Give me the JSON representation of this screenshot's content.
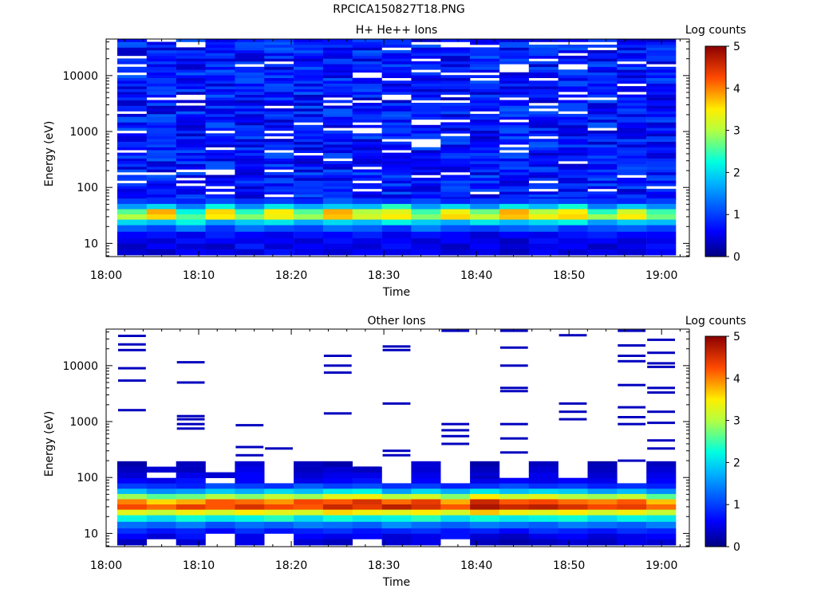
{
  "figure_title": "RPCICA150827T18.PNG",
  "chart_data": [
    {
      "type": "heatmap",
      "title": "H+ He++ Ions",
      "xlabel": "Time",
      "ylabel": "Energy (eV)",
      "y_scale": "log",
      "y_range": [
        5.8,
        45000
      ],
      "x_range": [
        "18:00",
        "19:03"
      ],
      "x_ticks": [
        "18:00",
        "18:10",
        "18:20",
        "18:30",
        "18:40",
        "18:50",
        "19:00"
      ],
      "y_ticks": [
        {
          "value": 10,
          "label": "10"
        },
        {
          "value": 100,
          "label": "100"
        },
        {
          "value": 1000,
          "label": "1000"
        },
        {
          "value": 10000,
          "label": "10000"
        }
      ],
      "colorbar": {
        "label": "Log counts",
        "range": [
          0,
          5
        ],
        "ticks": [
          "0",
          "1",
          "2",
          "3",
          "4",
          "5"
        ]
      },
      "time_columns": [
        "18:01",
        "18:04",
        "18:07",
        "18:11",
        "18:14",
        "18:17",
        "18:20",
        "18:24",
        "18:27",
        "18:30",
        "18:33",
        "18:37",
        "18:40",
        "18:43",
        "18:46",
        "18:50",
        "18:53",
        "18:56",
        "18:59"
      ],
      "energy_bins_eV": [
        7,
        9,
        11,
        14,
        19,
        24,
        30,
        37,
        46,
        57
      ],
      "values_log_counts": [
        [
          0.4,
          0.3,
          0.6,
          0.5,
          0.4,
          0.7,
          0.5,
          0.4,
          0.6,
          0.5,
          0.6,
          0.4,
          0.5,
          0.3,
          0.6,
          0.4,
          0.5,
          0.4,
          0.6
        ],
        [
          0.3,
          0.6,
          0.4,
          0.3,
          0.8,
          0.4,
          0.6,
          0.5,
          0.4,
          0.7,
          0.5,
          0.3,
          0.6,
          0.4,
          0.5,
          0.6,
          0.3,
          0.5,
          0.7
        ],
        [
          0.5,
          0.4,
          0.7,
          0.6,
          0.5,
          0.6,
          0.4,
          0.7,
          0.5,
          0.6,
          0.4,
          0.6,
          0.5,
          0.3,
          0.7,
          0.5,
          0.6,
          0.4,
          0.5
        ],
        [
          0.6,
          0.7,
          0.5,
          0.8,
          0.6,
          0.5,
          0.7,
          0.6,
          0.8,
          0.5,
          0.7,
          0.6,
          0.4,
          0.6,
          0.5,
          0.7,
          0.8,
          0.6,
          0.6
        ],
        [
          1.2,
          1.0,
          1.4,
          0.9,
          1.3,
          1.1,
          1.0,
          1.3,
          1.2,
          0.9,
          1.4,
          1.1,
          1.0,
          1.2,
          1.3,
          0.9,
          1.1,
          1.2,
          1.0
        ],
        [
          2.0,
          1.8,
          2.2,
          1.6,
          1.9,
          2.1,
          1.7,
          2.0,
          1.8,
          2.2,
          1.9,
          1.7,
          2.1,
          1.8,
          2.0,
          2.2,
          1.6,
          1.9,
          1.8
        ],
        [
          3.0,
          3.6,
          2.6,
          3.5,
          2.8,
          3.4,
          2.9,
          3.7,
          3.2,
          3.5,
          2.8,
          3.6,
          3.1,
          3.7,
          3.4,
          3.6,
          2.9,
          3.5,
          2.7
        ],
        [
          2.6,
          3.8,
          2.2,
          3.6,
          2.4,
          3.5,
          2.6,
          3.8,
          3.0,
          3.3,
          2.5,
          3.4,
          2.7,
          3.8,
          3.0,
          3.5,
          2.4,
          3.2,
          2.5
        ],
        [
          1.6,
          2.0,
          1.4,
          2.2,
          1.5,
          2.1,
          1.7,
          1.9,
          1.8,
          2.4,
          1.6,
          2.0,
          1.5,
          2.1,
          1.8,
          2.3,
          1.4,
          1.9,
          1.5
        ],
        [
          1.0,
          0.9,
          0.8,
          1.1,
          0.9,
          1.0,
          0.8,
          1.2,
          1.0,
          0.9,
          1.1,
          0.8,
          1.0,
          0.9,
          1.1,
          1.0,
          0.9,
          0.8,
          1.0
        ]
      ],
      "background_band_eV": [
        60,
        45000
      ],
      "background_log_counts": [
        0.3,
        1.2
      ]
    },
    {
      "type": "heatmap",
      "title": "Other Ions",
      "xlabel": "Time",
      "ylabel": "Energy (eV)",
      "y_scale": "log",
      "y_range": [
        5.8,
        45000
      ],
      "x_range": [
        "18:00",
        "19:03"
      ],
      "x_ticks": [
        "18:00",
        "18:10",
        "18:20",
        "18:30",
        "18:40",
        "18:50",
        "19:00"
      ],
      "y_ticks": [
        {
          "value": 10,
          "label": "10"
        },
        {
          "value": 100,
          "label": "100"
        },
        {
          "value": 1000,
          "label": "1000"
        },
        {
          "value": 10000,
          "label": "10000"
        }
      ],
      "colorbar": {
        "label": "Log counts",
        "range": [
          0,
          5
        ],
        "ticks": [
          "0",
          "1",
          "2",
          "3",
          "4",
          "5"
        ]
      },
      "time_columns": [
        "18:01",
        "18:04",
        "18:07",
        "18:11",
        "18:14",
        "18:17",
        "18:20",
        "18:24",
        "18:27",
        "18:30",
        "18:33",
        "18:37",
        "18:40",
        "18:43",
        "18:46",
        "18:50",
        "18:53",
        "18:56",
        "18:59"
      ],
      "energy_bins_eV": [
        7,
        9,
        11,
        14,
        19,
        24,
        30,
        37,
        46,
        57,
        71,
        88,
        110,
        140,
        175
      ],
      "values_log_counts": [
        [
          0.3,
          null,
          0.4,
          null,
          0.5,
          null,
          0.4,
          0.3,
          null,
          0.4,
          0.5,
          null,
          0.3,
          0.2,
          0.3,
          0.4,
          0.3,
          0.5,
          0.4
        ],
        [
          0.6,
          0.4,
          0.7,
          null,
          0.5,
          null,
          0.6,
          0.5,
          0.6,
          0.4,
          0.5,
          0.7,
          0.4,
          0.3,
          0.5,
          0.6,
          0.4,
          0.5,
          0.6
        ],
        [
          0.9,
          0.7,
          0.8,
          0.6,
          0.9,
          0.7,
          0.8,
          0.9,
          0.7,
          0.8,
          0.9,
          0.7,
          0.8,
          0.6,
          0.9,
          0.8,
          0.7,
          0.9,
          0.8
        ],
        [
          1.3,
          1.2,
          1.4,
          1.1,
          1.3,
          1.2,
          1.4,
          1.3,
          1.2,
          1.5,
          1.3,
          1.2,
          1.4,
          1.3,
          1.2,
          1.4,
          1.3,
          1.2,
          1.4
        ],
        [
          2.2,
          2.0,
          2.3,
          2.1,
          2.2,
          2.4,
          2.0,
          2.3,
          2.1,
          2.2,
          2.4,
          2.0,
          2.3,
          2.1,
          2.2,
          2.3,
          2.0,
          2.2,
          2.1
        ],
        [
          3.3,
          3.1,
          3.4,
          3.2,
          3.5,
          3.3,
          3.2,
          3.6,
          3.4,
          3.3,
          3.5,
          3.2,
          3.7,
          3.4,
          3.3,
          3.5,
          3.2,
          3.4,
          3.1
        ],
        [
          4.3,
          4.1,
          4.4,
          4.2,
          4.5,
          4.3,
          4.2,
          4.6,
          4.4,
          4.7,
          4.5,
          4.2,
          4.8,
          4.6,
          4.7,
          4.5,
          4.3,
          4.4,
          4.1
        ],
        [
          4.0,
          3.6,
          3.8,
          4.2,
          4.1,
          3.9,
          4.3,
          4.2,
          4.5,
          4.1,
          4.4,
          3.8,
          4.6,
          4.2,
          4.3,
          4.1,
          4.0,
          4.2,
          3.7
        ],
        [
          2.9,
          2.6,
          2.7,
          3.0,
          2.8,
          3.1,
          2.9,
          3.3,
          3.4,
          3.0,
          3.2,
          2.8,
          3.5,
          3.1,
          3.3,
          3.0,
          2.9,
          3.1,
          2.6
        ],
        [
          1.8,
          1.5,
          1.6,
          1.9,
          1.7,
          2.0,
          1.8,
          2.1,
          2.2,
          1.6,
          2.0,
          1.7,
          2.1,
          1.8,
          2.0,
          1.9,
          1.6,
          1.8,
          1.5
        ],
        [
          1.0,
          0.9,
          0.8,
          1.1,
          1.0,
          0.9,
          1.2,
          1.0,
          1.1,
          0.9,
          1.0,
          0.8,
          0.9,
          1.1,
          0.9,
          1.0,
          0.8,
          0.9,
          0.8
        ],
        [
          0.6,
          0.5,
          0.7,
          null,
          0.6,
          null,
          0.5,
          0.6,
          0.7,
          null,
          0.6,
          null,
          0.5,
          0.6,
          0.5,
          0.6,
          0.5,
          null,
          0.6
        ],
        [
          0.4,
          null,
          0.5,
          0.4,
          0.6,
          null,
          0.4,
          0.5,
          0.5,
          null,
          0.5,
          null,
          0.4,
          null,
          0.5,
          null,
          0.4,
          null,
          0.5
        ],
        [
          0.3,
          0.4,
          0.3,
          null,
          0.5,
          null,
          0.3,
          0.4,
          0.3,
          null,
          0.4,
          null,
          0.3,
          null,
          0.4,
          null,
          0.3,
          null,
          0.4
        ],
        [
          0.2,
          null,
          0.3,
          null,
          0.4,
          null,
          0.3,
          0.2,
          null,
          null,
          0.4,
          null,
          0.2,
          null,
          0.3,
          null,
          0.2,
          null,
          0.3
        ]
      ],
      "sparse_lines_eV": [
        [
          1600,
          5400,
          9000,
          19000,
          24000,
          34000
        ],
        [],
        [
          750,
          900,
          1100,
          1250,
          5000,
          11500
        ],
        [],
        [
          250,
          350,
          860
        ],
        [
          330
        ],
        [],
        [
          1400,
          7500,
          10000,
          15000
        ],
        [
          150
        ],
        [
          250,
          300,
          2100,
          19000,
          22000
        ],
        [],
        [
          400,
          550,
          700,
          900,
          42000
        ],
        [
          100
        ],
        [
          280,
          500,
          900,
          3500,
          4000,
          10000,
          21000,
          42000
        ],
        [],
        [
          1100,
          1500,
          2100,
          35000
        ],
        [
          170
        ],
        [
          200,
          900,
          1200,
          1800,
          4500,
          12000,
          15000,
          23000,
          42000
        ],
        [
          330,
          460,
          950,
          1500,
          3300,
          4000,
          9500,
          11000,
          17000,
          29000
        ]
      ],
      "sparse_line_log_counts": 0.3
    }
  ]
}
